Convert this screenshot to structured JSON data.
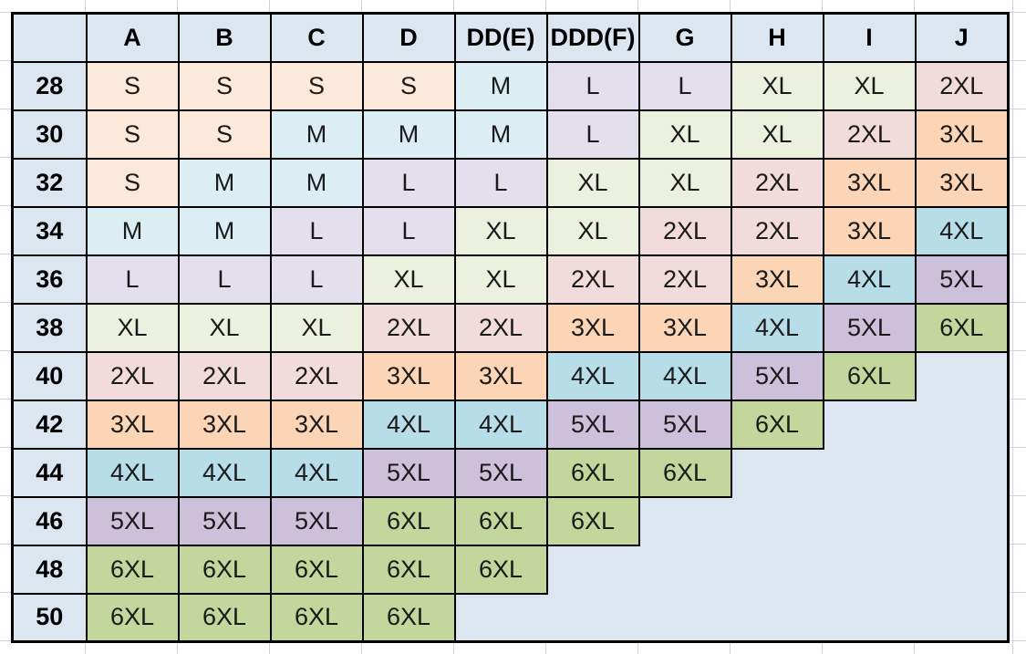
{
  "table": {
    "corner": "",
    "columns": [
      "A",
      "B",
      "C",
      "D",
      "DD(E)",
      "DDD(F)",
      "G",
      "H",
      "I",
      "J"
    ],
    "rows": [
      {
        "band": "28",
        "cells": [
          "S",
          "S",
          "S",
          "S",
          "M",
          "L",
          "L",
          "XL",
          "XL",
          "2XL"
        ]
      },
      {
        "band": "30",
        "cells": [
          "S",
          "S",
          "M",
          "M",
          "M",
          "L",
          "XL",
          "XL",
          "2XL",
          "3XL"
        ]
      },
      {
        "band": "32",
        "cells": [
          "S",
          "M",
          "M",
          "L",
          "L",
          "XL",
          "XL",
          "2XL",
          "3XL",
          "3XL"
        ]
      },
      {
        "band": "34",
        "cells": [
          "M",
          "M",
          "L",
          "L",
          "XL",
          "XL",
          "2XL",
          "2XL",
          "3XL",
          "4XL"
        ]
      },
      {
        "band": "36",
        "cells": [
          "L",
          "L",
          "L",
          "XL",
          "XL",
          "2XL",
          "2XL",
          "3XL",
          "4XL",
          "5XL"
        ]
      },
      {
        "band": "38",
        "cells": [
          "XL",
          "XL",
          "XL",
          "2XL",
          "2XL",
          "3XL",
          "3XL",
          "4XL",
          "5XL",
          "6XL"
        ]
      },
      {
        "band": "40",
        "cells": [
          "2XL",
          "2XL",
          "2XL",
          "3XL",
          "3XL",
          "4XL",
          "4XL",
          "5XL",
          "6XL",
          ""
        ]
      },
      {
        "band": "42",
        "cells": [
          "3XL",
          "3XL",
          "3XL",
          "4XL",
          "4XL",
          "5XL",
          "5XL",
          "6XL",
          "",
          ""
        ]
      },
      {
        "band": "44",
        "cells": [
          "4XL",
          "4XL",
          "4XL",
          "5XL",
          "5XL",
          "6XL",
          "6XL",
          "",
          "",
          ""
        ]
      },
      {
        "band": "46",
        "cells": [
          "5XL",
          "5XL",
          "5XL",
          "6XL",
          "6XL",
          "6XL",
          "",
          "",
          "",
          ""
        ]
      },
      {
        "band": "48",
        "cells": [
          "6XL",
          "6XL",
          "6XL",
          "6XL",
          "6XL",
          "",
          "",
          "",
          "",
          ""
        ]
      },
      {
        "band": "50",
        "cells": [
          "6XL",
          "6XL",
          "6XL",
          "6XL",
          "",
          "",
          "",
          "",
          "",
          ""
        ]
      }
    ]
  },
  "size_colors": {
    "S": "#fde9d9",
    "M": "#daeef3",
    "L": "#e4dfec",
    "XL": "#ebf1de",
    "2XL": "#f2dcdb",
    "3XL": "#fbd5b5",
    "4XL": "#b7dee8",
    "5XL": "#ccc0da",
    "6XL": "#c3d69b"
  },
  "colors": {
    "header_bg": "#dce6f1",
    "row_header_bg": "#dce6f1",
    "empty_region_bg": "#dce6f1",
    "table_border": "#000000",
    "margin_gridline": "#c9d3e2",
    "cell_text": "#1a1a1a",
    "header_text": "#000000",
    "canvas_bg": "#ffffff"
  }
}
